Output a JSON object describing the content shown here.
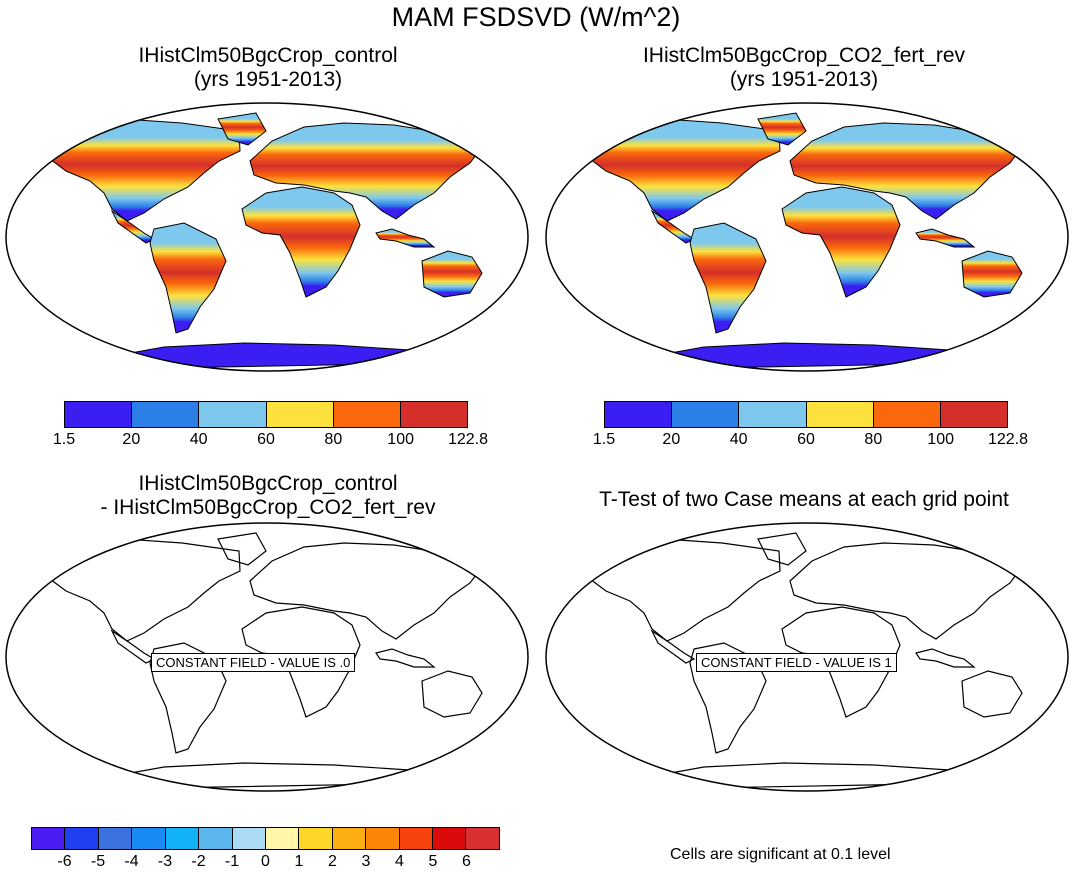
{
  "page": {
    "title": "MAM FSDSVD (W/m^2)"
  },
  "panels": [
    {
      "title_line1": "IHistClm50BgcCrop_control",
      "title_line2": "(yrs 1951-2013)"
    },
    {
      "title_line1": "IHistClm50BgcCrop_CO2_fert_rev",
      "title_line2": "(yrs 1951-2013)"
    },
    {
      "title_line1": "IHistClm50BgcCrop_control",
      "title_line2": "- IHistClm50BgcCrop_CO2_fert_rev",
      "message": "CONSTANT FIELD - VALUE IS .0"
    },
    {
      "title_line1": "T-Test of two Case means at each grid point",
      "message": "CONSTANT FIELD - VALUE IS 1"
    }
  ],
  "colorbar_main": {
    "labels": [
      "1.5",
      "20",
      "40",
      "60",
      "80",
      "100",
      "122.8"
    ],
    "colors": [
      "#3b1ff2",
      "#2c7fe6",
      "#7ec8ee",
      "#fde23d",
      "#f9680c",
      "#d42f2b"
    ]
  },
  "colorbar_diff": {
    "labels": [
      "-6",
      "-5",
      "-4",
      "-3",
      "-2",
      "-1",
      "0",
      "1",
      "2",
      "3",
      "4",
      "5",
      "6"
    ],
    "colors": [
      "#4b1cf2",
      "#1f3ff0",
      "#3c72e0",
      "#1a8af4",
      "#12b3f6",
      "#5bb6ee",
      "#aadaf5",
      "#fff7a8",
      "#fdd62a",
      "#fdae12",
      "#fb8409",
      "#f7430e",
      "#dc0b0b",
      "#d83030"
    ]
  },
  "footnote": "Cells are significant at 0.1 level"
}
